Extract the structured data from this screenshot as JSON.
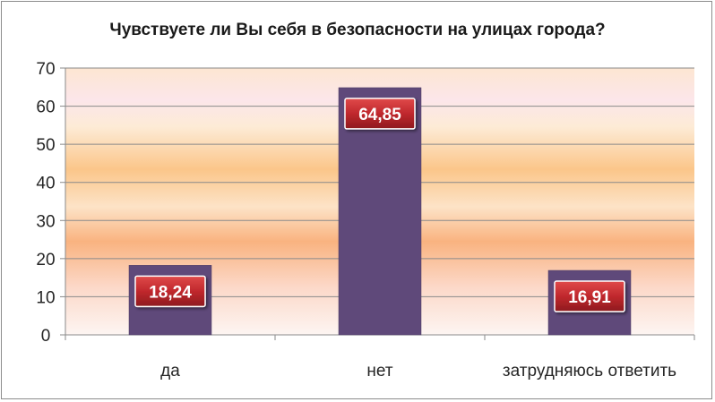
{
  "chart_data": {
    "type": "bar",
    "title": "Чувствуете ли Вы себя в безопасности на улицах города?",
    "categories": [
      "да",
      "нет",
      "затрудняюсь ответить"
    ],
    "values": [
      18.24,
      64.85,
      16.91
    ],
    "value_labels": [
      "18,24",
      "64,85",
      "16,91"
    ],
    "yticks": [
      "0",
      "10",
      "20",
      "30",
      "40",
      "50",
      "60",
      "70"
    ],
    "ylim": [
      0,
      70
    ],
    "grid": true,
    "legend": "none",
    "colors": {
      "bar": "#5f497a",
      "label_box": "#c0282d",
      "label_text": "#ffffff",
      "plot_bg_top": "#fde9d9",
      "plot_bg_band": "#f9b77a",
      "plot_bg_bottom": "#fdf3ef"
    }
  }
}
